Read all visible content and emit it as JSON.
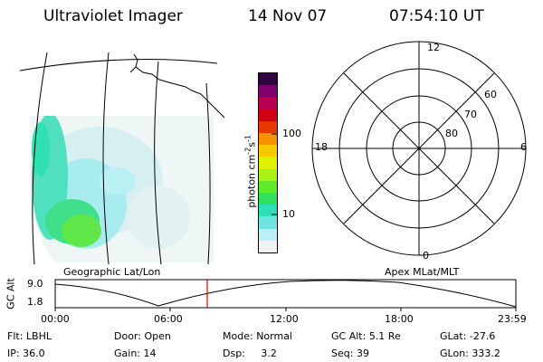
{
  "header": {
    "instrument": "Ultraviolet Imager",
    "date": "14 Nov 07",
    "time": "07:54:10 UT"
  },
  "map_panel": {
    "label": "Geographic Lat/Lon"
  },
  "colorbar": {
    "unit_prefix": "photon cm",
    "unit_exp1": "-2",
    "unit_s": "s",
    "unit_exp2": "-1",
    "tick_labels": [
      "100",
      "10"
    ],
    "colors": [
      "#f0f0f0",
      "#b8f0f4",
      "#70e4e0",
      "#2ee0b8",
      "#30e060",
      "#60e82a",
      "#a8f018",
      "#e0f000",
      "#f8c800",
      "#f89000",
      "#e83800",
      "#d00010",
      "#b80050",
      "#800070",
      "#300040"
    ]
  },
  "polar_panel": {
    "label": "Apex MLat/MLT",
    "mlt_labels": {
      "top": "12",
      "left": "18",
      "right": "6",
      "bottom": "0"
    },
    "mlat_labels": [
      "60",
      "70",
      "80"
    ]
  },
  "orbit_plot": {
    "ylabel": "GC Alt",
    "y_ticks": [
      "9.0",
      "1.8"
    ],
    "x_ticks": [
      "00:00",
      "06:00",
      "12:00",
      "18:00",
      "23:59"
    ],
    "marker_time": "07:54:10",
    "marker_color": "#e00000"
  },
  "status": {
    "row1": [
      {
        "label": "Flt:",
        "value": "LBHL"
      },
      {
        "label": "Door:",
        "value": "Open"
      },
      {
        "label": "Mode:",
        "value": "Normal"
      },
      {
        "label": "GC Alt:",
        "value": "5.1 Re"
      },
      {
        "label": "GLat:",
        "value": "-27.6"
      }
    ],
    "row2": [
      {
        "label": "IP:",
        "value": "36.0"
      },
      {
        "label": "Gain:",
        "value": "14"
      },
      {
        "label": "Dsp:",
        "value": "3.2"
      },
      {
        "label": "Seq:",
        "value": "39"
      },
      {
        "label": "GLon:",
        "value": "333.2"
      }
    ]
  }
}
